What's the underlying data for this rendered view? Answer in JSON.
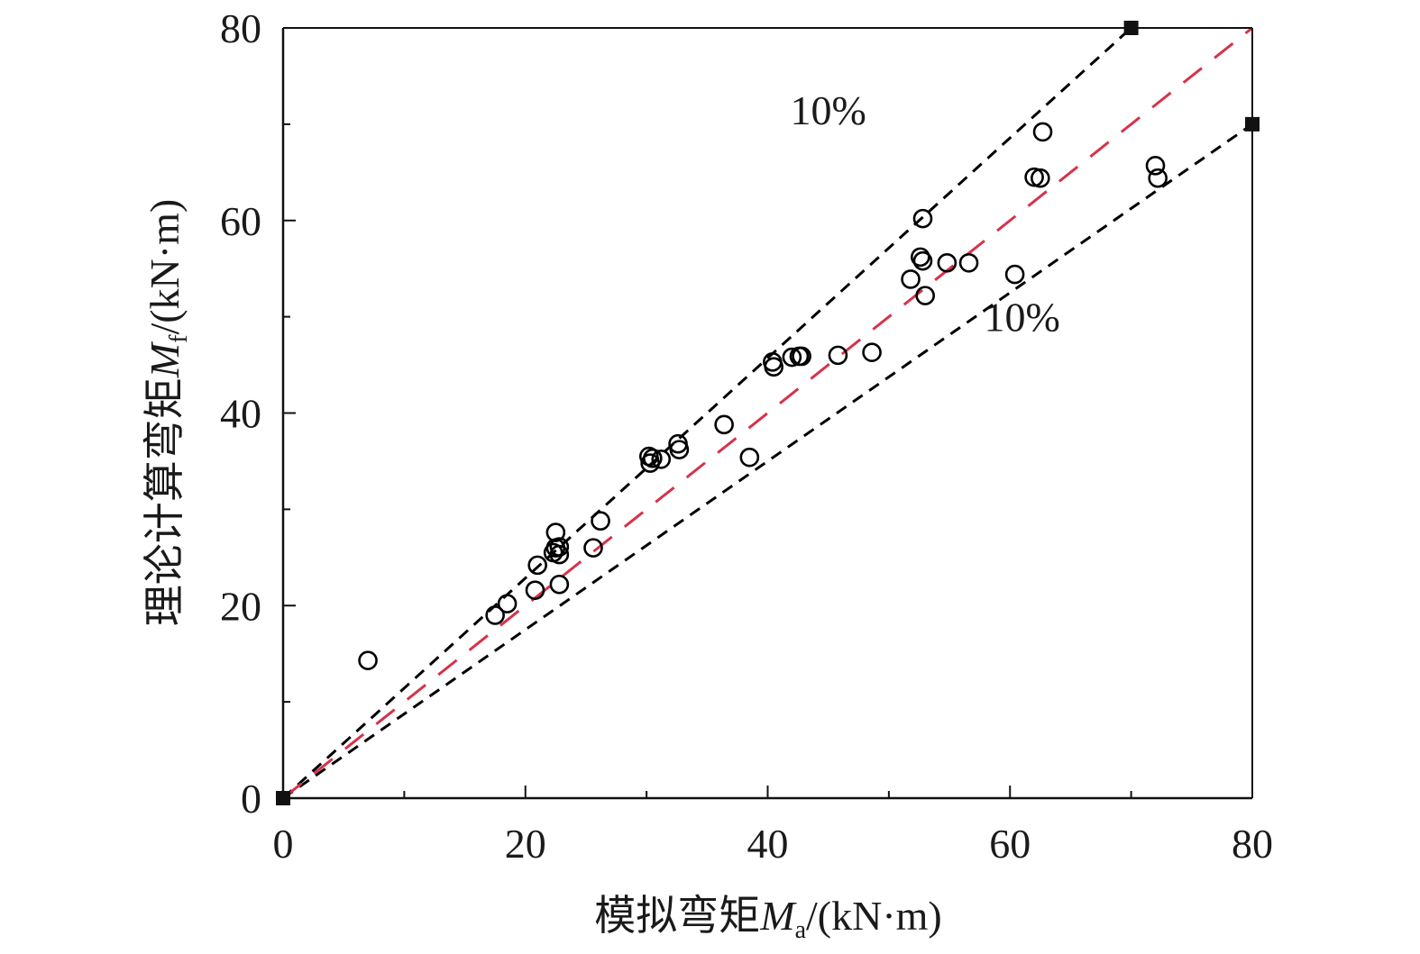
{
  "chart_data": {
    "type": "scatter",
    "title": "",
    "xlabel": {
      "cjk": "模拟弯矩",
      "symbol": "M",
      "subscript": "a",
      "unit": "/(kN·m)"
    },
    "ylabel": {
      "cjk": "理论计算弯矩",
      "symbol": "M",
      "subscript": "f",
      "unit": "/(kN·m)"
    },
    "xlim": [
      0,
      80
    ],
    "ylim": [
      0,
      80
    ],
    "xticks": [
      0,
      20,
      40,
      60,
      80
    ],
    "yticks": [
      0,
      20,
      40,
      60,
      80
    ],
    "x_tick_labels": [
      "0",
      "20",
      "40",
      "60",
      "80"
    ],
    "y_tick_labels": [
      "0",
      "20",
      "40",
      "60",
      "80"
    ],
    "minor_tick_step": 10,
    "grid": false,
    "colors": {
      "points": "#000000",
      "bound_lines": "#000000",
      "equality_line": "#d6334a"
    },
    "series": [
      {
        "name": "data",
        "marker": "open-circle",
        "points": [
          [
            7.0,
            14.3
          ],
          [
            17.5,
            19.0
          ],
          [
            18.5,
            20.2
          ],
          [
            20.8,
            21.6
          ],
          [
            21.0,
            24.2
          ],
          [
            22.8,
            22.2
          ],
          [
            22.3,
            25.5
          ],
          [
            22.5,
            26.0
          ],
          [
            22.5,
            27.6
          ],
          [
            22.8,
            25.3
          ],
          [
            22.8,
            26.1
          ],
          [
            25.6,
            26.0
          ],
          [
            26.2,
            28.8
          ],
          [
            30.2,
            35.5
          ],
          [
            30.3,
            34.8
          ],
          [
            30.5,
            35.3
          ],
          [
            31.2,
            35.2
          ],
          [
            32.6,
            36.8
          ],
          [
            32.7,
            36.2
          ],
          [
            36.4,
            38.8
          ],
          [
            38.5,
            35.4
          ],
          [
            40.4,
            45.3
          ],
          [
            40.5,
            44.8
          ],
          [
            42.0,
            45.8
          ],
          [
            42.6,
            45.9
          ],
          [
            42.8,
            45.9
          ],
          [
            45.8,
            46.0
          ],
          [
            48.6,
            46.3
          ],
          [
            51.8,
            53.9
          ],
          [
            52.6,
            56.2
          ],
          [
            52.8,
            55.8
          ],
          [
            52.8,
            60.2
          ],
          [
            53.0,
            52.2
          ],
          [
            54.8,
            55.6
          ],
          [
            56.6,
            55.6
          ],
          [
            60.4,
            54.4
          ],
          [
            62.0,
            64.5
          ],
          [
            62.5,
            64.4
          ],
          [
            62.7,
            69.2
          ],
          [
            72.0,
            65.7
          ],
          [
            72.2,
            64.4
          ]
        ]
      },
      {
        "name": "upper-bound",
        "style": "dashed-black",
        "points": [
          [
            0,
            0
          ],
          [
            70,
            80
          ]
        ]
      },
      {
        "name": "lower-bound",
        "style": "dashed-black",
        "points": [
          [
            0,
            0
          ],
          [
            80,
            70
          ]
        ]
      },
      {
        "name": "equality",
        "style": "dashed-red",
        "points": [
          [
            0,
            0
          ],
          [
            80,
            80
          ]
        ]
      }
    ],
    "endpoint_markers": [
      [
        0,
        0
      ],
      [
        70,
        80
      ],
      [
        80,
        70
      ]
    ],
    "annotations": [
      {
        "text": "10%",
        "x": 45,
        "y": 71.5
      },
      {
        "text": "10%",
        "x": 61,
        "y": 50
      }
    ]
  }
}
